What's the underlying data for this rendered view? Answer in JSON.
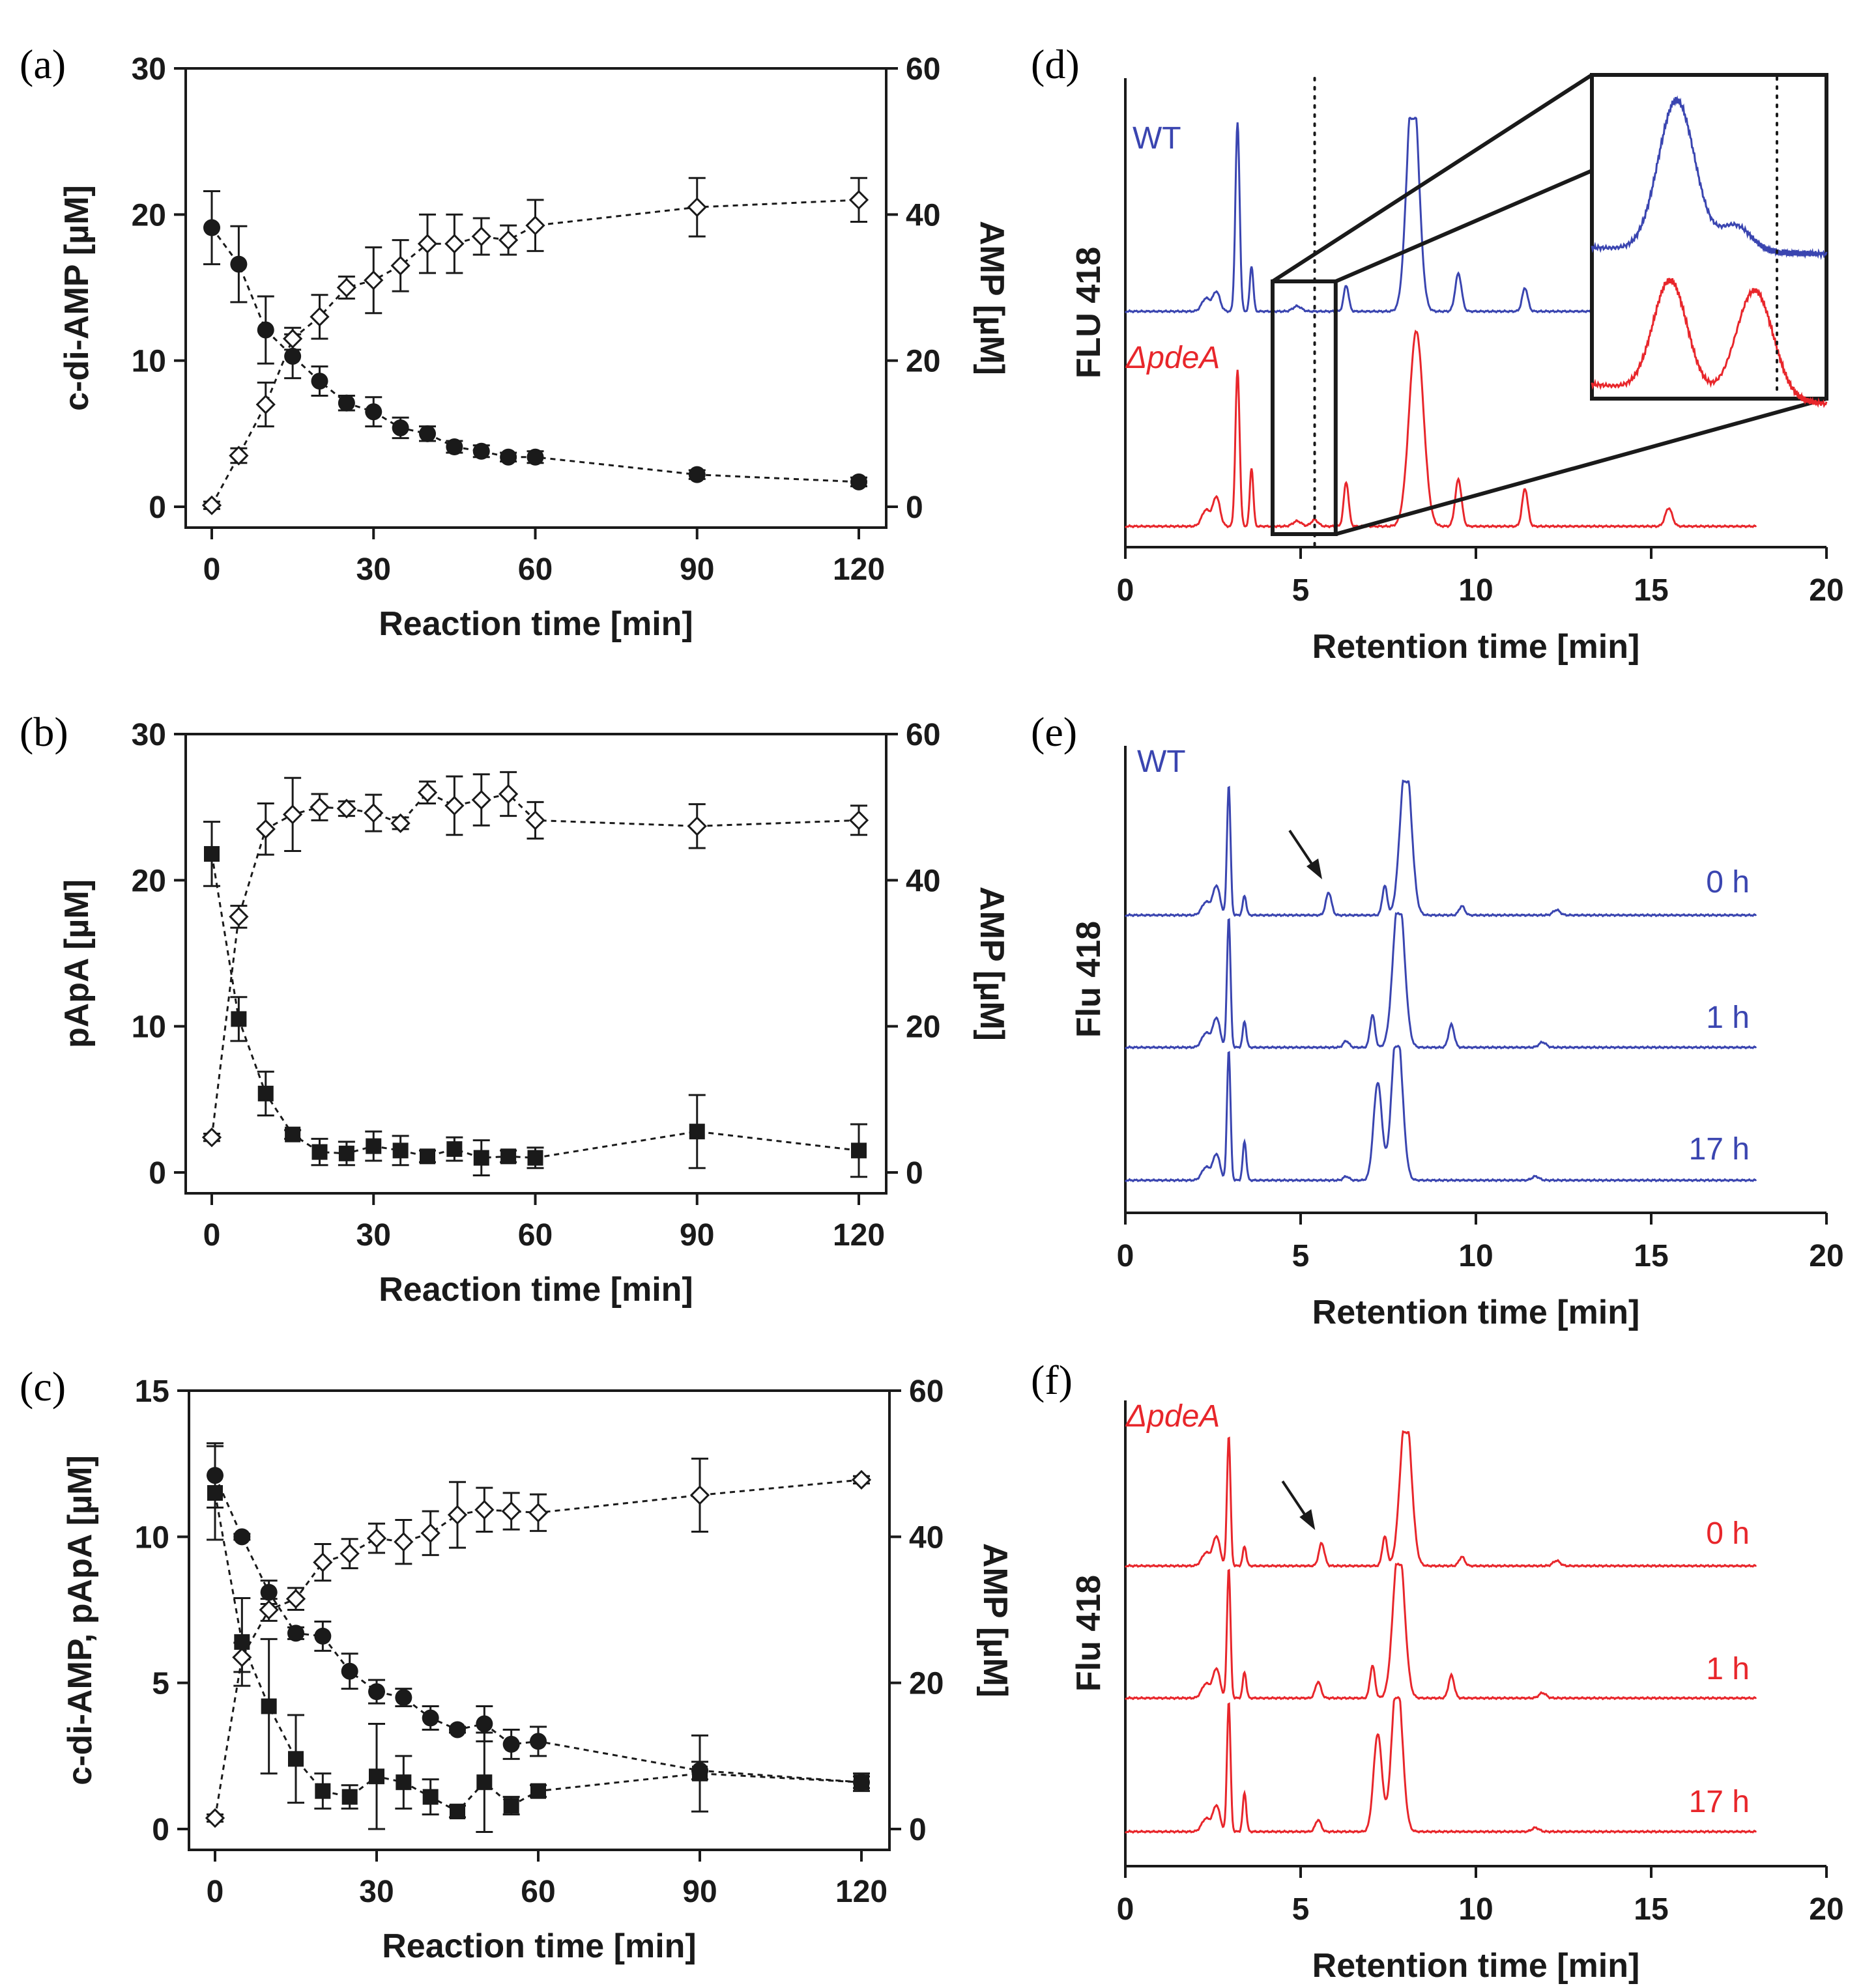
{
  "figure": {
    "colors": {
      "wt": "#3a45b0",
      "mutant": "#e8262b",
      "black": "#1a1a1a"
    }
  },
  "chart_data": [
    {
      "panel": "(a)",
      "type": "scatter",
      "xlabel": "Reaction time [min]",
      "ylabel_left": "c-di-AMP [µM]",
      "ylabel_right": "AMP [µM]",
      "xlim": [
        0,
        120
      ],
      "ylim_left": [
        0,
        30
      ],
      "ylim_right": [
        0,
        60
      ],
      "xticks": [
        0,
        30,
        60,
        90,
        120
      ],
      "yticks_left": [
        0,
        10,
        20,
        30
      ],
      "yticks_right": [
        0,
        20,
        40,
        60
      ],
      "series": [
        {
          "name": "c-di-AMP",
          "marker": "filled-circle",
          "axis": "left",
          "x": [
            0,
            5,
            10,
            15,
            20,
            25,
            30,
            35,
            40,
            45,
            50,
            55,
            60,
            90,
            120
          ],
          "y": [
            19.1,
            16.6,
            12.1,
            10.3,
            8.6,
            7.1,
            6.5,
            5.4,
            5.0,
            4.1,
            3.8,
            3.4,
            3.4,
            2.2,
            1.7
          ],
          "err": [
            2.5,
            2.6,
            2.3,
            1.5,
            1.0,
            0.5,
            1.0,
            0.7,
            0.5,
            0.4,
            0.4,
            0.3,
            0.4,
            0.3,
            0.3
          ]
        },
        {
          "name": "AMP",
          "marker": "open-diamond",
          "axis": "right",
          "x": [
            0,
            5,
            10,
            15,
            20,
            25,
            30,
            35,
            40,
            45,
            50,
            55,
            60,
            90,
            120
          ],
          "y": [
            0.2,
            7,
            14,
            23,
            26,
            30,
            31,
            33,
            36,
            36,
            37,
            36.5,
            38.5,
            41,
            42
          ],
          "err": [
            0.5,
            1,
            3,
            1.5,
            3,
            1.5,
            4.5,
            3.5,
            4,
            4,
            2.5,
            2,
            3.5,
            4,
            3
          ]
        }
      ]
    },
    {
      "panel": "(b)",
      "type": "scatter",
      "xlabel": "Reaction time [min]",
      "ylabel_left": "pApA [µM]",
      "ylabel_right": "AMP [µM]",
      "xlim": [
        0,
        120
      ],
      "ylim_left": [
        0,
        30
      ],
      "ylim_right": [
        0,
        60
      ],
      "xticks": [
        0,
        30,
        60,
        90,
        120
      ],
      "yticks_left": [
        0,
        10,
        20,
        30
      ],
      "yticks_right": [
        0,
        20,
        40,
        60
      ],
      "series": [
        {
          "name": "pApA",
          "marker": "filled-square",
          "axis": "left",
          "x": [
            0,
            5,
            10,
            15,
            20,
            25,
            30,
            35,
            40,
            45,
            50,
            55,
            60,
            90,
            120
          ],
          "y": [
            21.8,
            10.5,
            5.4,
            2.6,
            1.4,
            1.3,
            1.8,
            1.5,
            1.1,
            1.6,
            1.0,
            1.1,
            1.0,
            2.8,
            1.5
          ],
          "err": [
            2.2,
            1.5,
            1.5,
            0.3,
            0.9,
            0.8,
            1.0,
            1.0,
            0.4,
            0.8,
            1.2,
            0.4,
            0.7,
            2.5,
            1.8
          ]
        },
        {
          "name": "AMP",
          "marker": "open-diamond",
          "axis": "right",
          "x": [
            0,
            5,
            10,
            15,
            20,
            25,
            30,
            35,
            40,
            45,
            50,
            55,
            60,
            90,
            120
          ],
          "y": [
            4.8,
            35,
            47,
            49,
            50,
            49.8,
            49.2,
            47.8,
            52,
            50.2,
            51,
            51.8,
            48.2,
            47.4,
            48.2
          ],
          "err": [
            0.5,
            1.5,
            3.5,
            5,
            1.8,
            1,
            2.5,
            0.8,
            1.5,
            4,
            3.5,
            3,
            2.5,
            3,
            2
          ]
        }
      ]
    },
    {
      "panel": "(c)",
      "type": "scatter",
      "xlabel": "Reaction time [min]",
      "ylabel_left": "c-di-AMP, pApA [µM]",
      "ylabel_right": "AMP [µM]",
      "xlim": [
        0,
        120
      ],
      "ylim_left": [
        0,
        15
      ],
      "ylim_right": [
        0,
        60
      ],
      "xticks": [
        0,
        30,
        60,
        90,
        120
      ],
      "yticks_left": [
        0,
        5,
        10,
        15
      ],
      "yticks_right": [
        0,
        20,
        40,
        60
      ],
      "series": [
        {
          "name": "c-di-AMP",
          "marker": "filled-circle",
          "axis": "left",
          "x": [
            0,
            5,
            10,
            15,
            20,
            25,
            30,
            35,
            40,
            45,
            50,
            55,
            60,
            90,
            120
          ],
          "y": [
            12.1,
            10.0,
            8.1,
            6.7,
            6.6,
            5.4,
            4.7,
            4.5,
            3.8,
            3.4,
            3.6,
            2.9,
            3.0,
            2.0,
            1.6
          ],
          "err": [
            1.1,
            0.1,
            0.4,
            0.2,
            0.5,
            0.6,
            0.4,
            0.3,
            0.4,
            0.1,
            0.6,
            0.5,
            0.5,
            0.3,
            0.2
          ]
        },
        {
          "name": "pApA",
          "marker": "filled-square",
          "axis": "left",
          "x": [
            0,
            5,
            10,
            15,
            20,
            25,
            30,
            35,
            40,
            45,
            50,
            55,
            60,
            90,
            120
          ],
          "y": [
            11.5,
            6.4,
            4.2,
            2.4,
            1.3,
            1.1,
            1.8,
            1.6,
            1.1,
            0.6,
            1.6,
            0.8,
            1.3,
            1.9,
            1.6
          ],
          "err": [
            1.6,
            1.5,
            2.3,
            1.5,
            0.6,
            0.4,
            1.8,
            0.9,
            0.6,
            0.2,
            1.7,
            0.3,
            0.2,
            1.3,
            0.3
          ]
        },
        {
          "name": "AMP",
          "marker": "open-diamond",
          "axis": "right",
          "x": [
            0,
            5,
            10,
            15,
            20,
            25,
            30,
            35,
            40,
            45,
            50,
            55,
            60,
            90,
            120
          ],
          "y": [
            1.5,
            23.5,
            30,
            31.5,
            36.5,
            37.7,
            39.8,
            39.3,
            40.5,
            43,
            43.7,
            43.5,
            43.3,
            45.7,
            47.8
          ],
          "err": [
            0.5,
            2,
            1.5,
            1.5,
            2.5,
            2,
            2,
            3,
            3,
            4.5,
            3,
            2.5,
            2.5,
            5,
            0.5
          ]
        }
      ]
    },
    {
      "panel": "(d)",
      "type": "line",
      "xlabel": "Retention time [min]",
      "ylabel": "FLU 418",
      "xlim": [
        0,
        20
      ],
      "xticks": [
        0,
        5,
        10,
        15,
        20
      ],
      "series": [
        {
          "name": "WT",
          "color": "#3a45b0"
        },
        {
          "name": "ΔpdeA",
          "color": "#e8262b"
        }
      ],
      "peaks_min": [
        2.6,
        3.2,
        3.6,
        6.3,
        8.2,
        9.5,
        11.4,
        15.5
      ],
      "marker_line_min": 5.4,
      "inset_range_min": [
        4.2,
        6.0
      ]
    },
    {
      "panel": "(e)",
      "type": "line",
      "xlabel": "Retention time [min]",
      "ylabel": "Flu 418",
      "xlim": [
        0,
        20
      ],
      "xticks": [
        0,
        5,
        10,
        15,
        20
      ],
      "strain": "WT",
      "series": [
        {
          "name": "0 h",
          "color": "#3a45b0"
        },
        {
          "name": "1 h",
          "color": "#3a45b0"
        },
        {
          "name": "17 h",
          "color": "#3a45b0"
        }
      ],
      "arrow_peak_min": 5.8
    },
    {
      "panel": "(f)",
      "type": "line",
      "xlabel": "Retention time [min]",
      "ylabel": "Flu 418",
      "xlim": [
        0,
        20
      ],
      "xticks": [
        0,
        5,
        10,
        15,
        20
      ],
      "strain": "ΔpdeA",
      "series": [
        {
          "name": "0 h",
          "color": "#e8262b"
        },
        {
          "name": "1 h",
          "color": "#e8262b"
        },
        {
          "name": "17 h",
          "color": "#e8262b"
        }
      ],
      "arrow_peak_min": 5.6
    }
  ]
}
